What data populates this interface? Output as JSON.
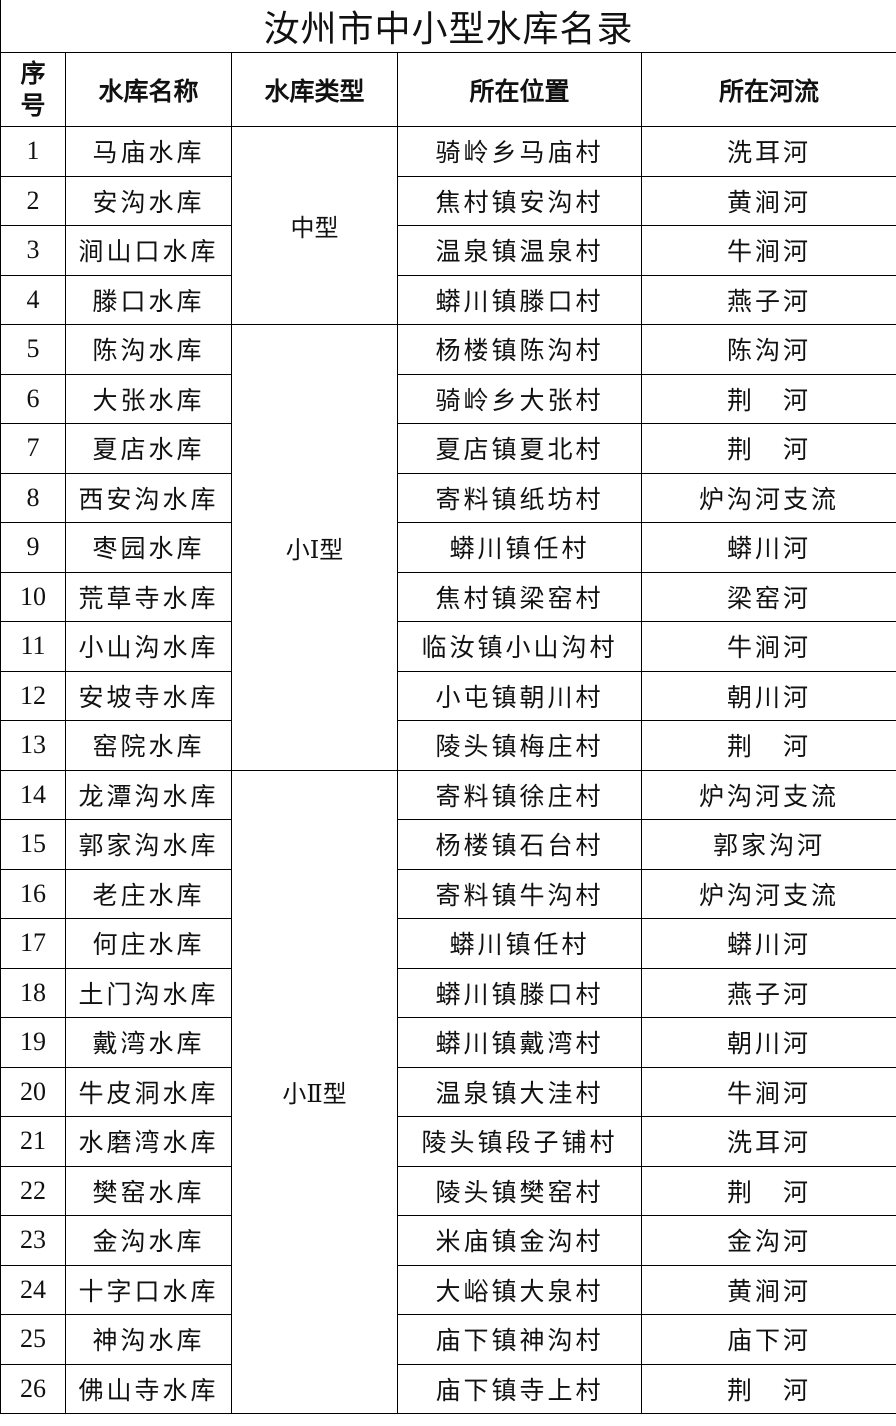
{
  "title": "汝州市中小型水库名录",
  "headers": {
    "seq": "序号",
    "name": "水库名称",
    "type": "水库类型",
    "location": "所在位置",
    "river": "所在河流"
  },
  "groups": [
    {
      "type": "中型",
      "rows": [
        [
          "1",
          "马庙水库",
          "骑岭乡马庙村",
          "洗耳河"
        ],
        [
          "2",
          "安沟水库",
          "焦村镇安沟村",
          "黄涧河"
        ],
        [
          "3",
          "涧山口水库",
          "温泉镇温泉村",
          "牛涧河"
        ],
        [
          "4",
          "滕口水库",
          "蟒川镇滕口村",
          "燕子河"
        ]
      ]
    },
    {
      "type": "小Ⅰ型",
      "rows": [
        [
          "5",
          "陈沟水库",
          "杨楼镇陈沟村",
          "陈沟河"
        ],
        [
          "6",
          "大张水库",
          "骑岭乡大张村",
          "荆　河"
        ],
        [
          "7",
          "夏店水库",
          "夏店镇夏北村",
          "荆　河"
        ],
        [
          "8",
          "西安沟水库",
          "寄料镇纸坊村",
          "炉沟河支流"
        ],
        [
          "9",
          "枣园水库",
          "蟒川镇任村",
          "蟒川河"
        ],
        [
          "10",
          "荒草寺水库",
          "焦村镇梁窑村",
          "梁窑河"
        ],
        [
          "11",
          "小山沟水库",
          "临汝镇小山沟村",
          "牛涧河"
        ],
        [
          "12",
          "安坡寺水库",
          "小屯镇朝川村",
          "朝川河"
        ],
        [
          "13",
          "窑院水库",
          "陵头镇梅庄村",
          "荆　河"
        ]
      ]
    },
    {
      "type": "小Ⅱ型",
      "rows": [
        [
          "14",
          "龙潭沟水库",
          "寄料镇徐庄村",
          "炉沟河支流"
        ],
        [
          "15",
          "郭家沟水库",
          "杨楼镇石台村",
          "郭家沟河"
        ],
        [
          "16",
          "老庄水库",
          "寄料镇牛沟村",
          "炉沟河支流"
        ],
        [
          "17",
          "何庄水库",
          "蟒川镇任村",
          "蟒川河"
        ],
        [
          "18",
          "土门沟水库",
          "蟒川镇滕口村",
          "燕子河"
        ],
        [
          "19",
          "戴湾水库",
          "蟒川镇戴湾村",
          "朝川河"
        ],
        [
          "20",
          "牛皮洞水库",
          "温泉镇大洼村",
          "牛涧河"
        ],
        [
          "21",
          "水磨湾水库",
          "陵头镇段子铺村",
          "洗耳河"
        ],
        [
          "22",
          "樊窑水库",
          "陵头镇樊窑村",
          "荆　河"
        ],
        [
          "23",
          "金沟水库",
          "米庙镇金沟村",
          "金沟河"
        ],
        [
          "24",
          "十字口水库",
          "大峪镇大泉村",
          "黄涧河"
        ],
        [
          "25",
          "神沟水库",
          "庙下镇神沟村",
          "庙下河"
        ],
        [
          "26",
          "佛山寺水库",
          "庙下镇寺上村",
          "荆　河"
        ]
      ]
    }
  ]
}
